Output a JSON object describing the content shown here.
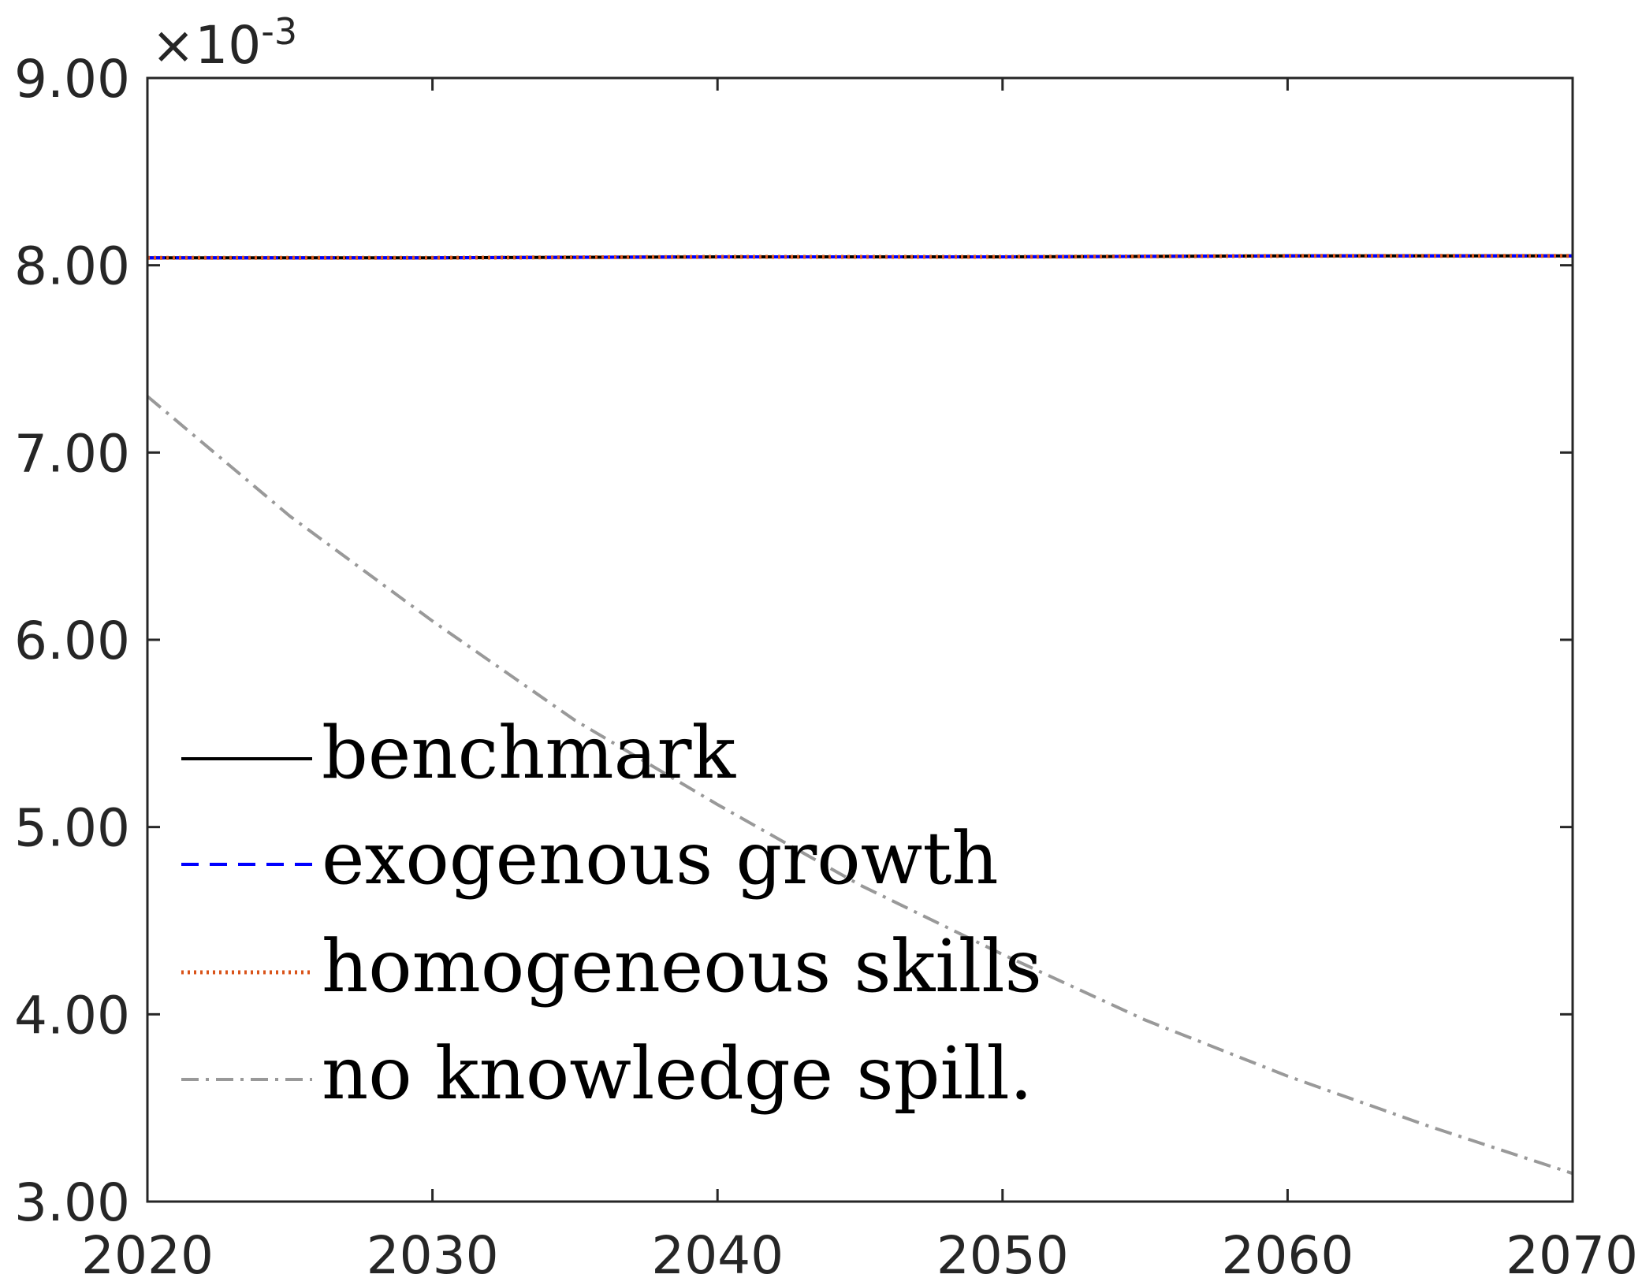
{
  "chart_data": {
    "type": "line",
    "title": "",
    "xlabel": "",
    "ylabel": "",
    "xlim": [
      2020,
      2070
    ],
    "ylim": [
      3.0,
      9.0
    ],
    "y_exponent_label": "×10",
    "y_exponent_power": "-3",
    "x_ticks": [
      2020,
      2030,
      2040,
      2050,
      2060,
      2070
    ],
    "x_tick_labels": [
      "2020",
      "2030",
      "2040",
      "2050",
      "2060",
      "2070"
    ],
    "y_ticks": [
      3,
      4,
      5,
      6,
      7,
      8,
      9
    ],
    "y_tick_labels": [
      "3.00",
      "4.00",
      "5.00",
      "6.00",
      "7.00",
      "8.00",
      "9.00"
    ],
    "grid": false,
    "legend_position": "bottom-left",
    "series": [
      {
        "name": "benchmark",
        "color": "#000000",
        "style": "solid",
        "x": [
          2020,
          2030,
          2040,
          2050,
          2060,
          2070
        ],
        "y": [
          8.04,
          8.04,
          8.045,
          8.045,
          8.05,
          8.05
        ]
      },
      {
        "name": "exogenous growth",
        "color": "#0000ff",
        "style": "dashed",
        "x": [
          2020,
          2030,
          2040,
          2050,
          2060,
          2070
        ],
        "y": [
          8.04,
          8.04,
          8.045,
          8.045,
          8.05,
          8.05
        ]
      },
      {
        "name": "homogeneous skills",
        "color": "#d95319",
        "style": "dotted",
        "x": [
          2020,
          2030,
          2040,
          2050,
          2060,
          2070
        ],
        "y": [
          8.04,
          8.04,
          8.045,
          8.045,
          8.05,
          8.05
        ]
      },
      {
        "name": "no knowledge spill.",
        "color": "#999999",
        "style": "dashdot",
        "x": [
          2020,
          2025,
          2030,
          2035,
          2040,
          2045,
          2050,
          2055,
          2060,
          2065,
          2070
        ],
        "y": [
          7.3,
          6.66,
          6.1,
          5.57,
          5.12,
          4.69,
          4.32,
          3.97,
          3.67,
          3.4,
          3.15
        ]
      }
    ]
  }
}
